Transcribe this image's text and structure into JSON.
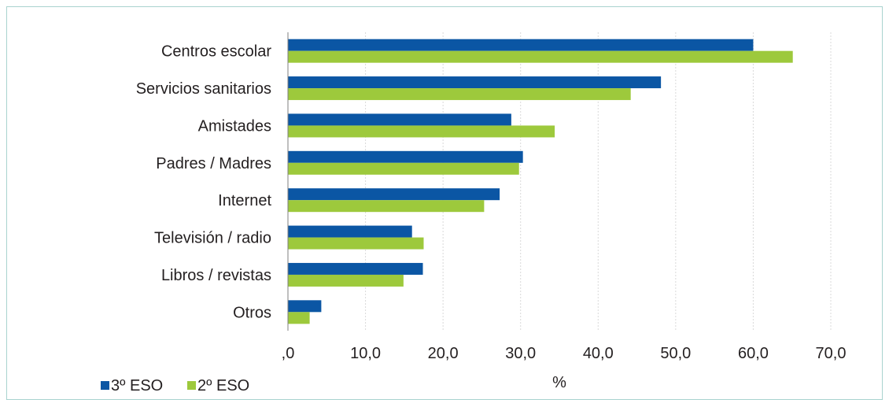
{
  "chart_data": {
    "type": "bar",
    "orientation": "horizontal",
    "categories": [
      "Centros escolar",
      "Servicios sanitarios",
      "Amistades",
      "Padres / Madres",
      "Internet",
      "Televisión / radio",
      "Libros / revistas",
      "Otros"
    ],
    "series": [
      {
        "name": "3º ESO",
        "color": "#0b56a4",
        "values": [
          60.0,
          48.1,
          28.8,
          30.3,
          27.3,
          16.0,
          17.4,
          4.3
        ]
      },
      {
        "name": "2º ESO",
        "color": "#9dc93c",
        "values": [
          65.1,
          44.2,
          34.4,
          29.8,
          25.3,
          17.5,
          14.9,
          2.8
        ]
      }
    ],
    "xlabel": "%",
    "xlim": [
      0,
      70
    ],
    "xticks": [
      ",0",
      "10,0",
      "20,0",
      "30,0",
      "40,0",
      "50,0",
      "60,0",
      "70,0"
    ],
    "xtick_step": 10,
    "grid": "vertical",
    "legend_position": "bottom-left"
  }
}
